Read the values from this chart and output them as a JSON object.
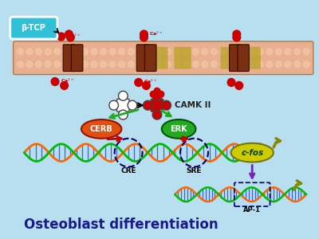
{
  "bg_color": "#b8dff0",
  "title": "Osteoblast differentiation",
  "title_fontsize": 12,
  "title_color": "#1a1a8c",
  "beta_tcp_label": "β-TCP",
  "beta_tcp_color": "#30c0d8",
  "ca_color": "#cc0000",
  "camk_label": "CAMK II",
  "cerb_label": "CERB",
  "cerb_color": "#e05010",
  "erk_label": "ERK",
  "erk_color": "#22aa22",
  "cfos_label": "c-fos",
  "cfos_color": "#cccc00",
  "cre_label": "CRE",
  "sre_label": "SRE",
  "ap1_label": "AP-1",
  "arrow_green": "#22aa22",
  "arrow_red": "#cc0000",
  "arrow_purple": "#7722bb",
  "arrow_olive": "#888800",
  "channel_color": "#7a3010",
  "membrane_color": "#e8b090"
}
